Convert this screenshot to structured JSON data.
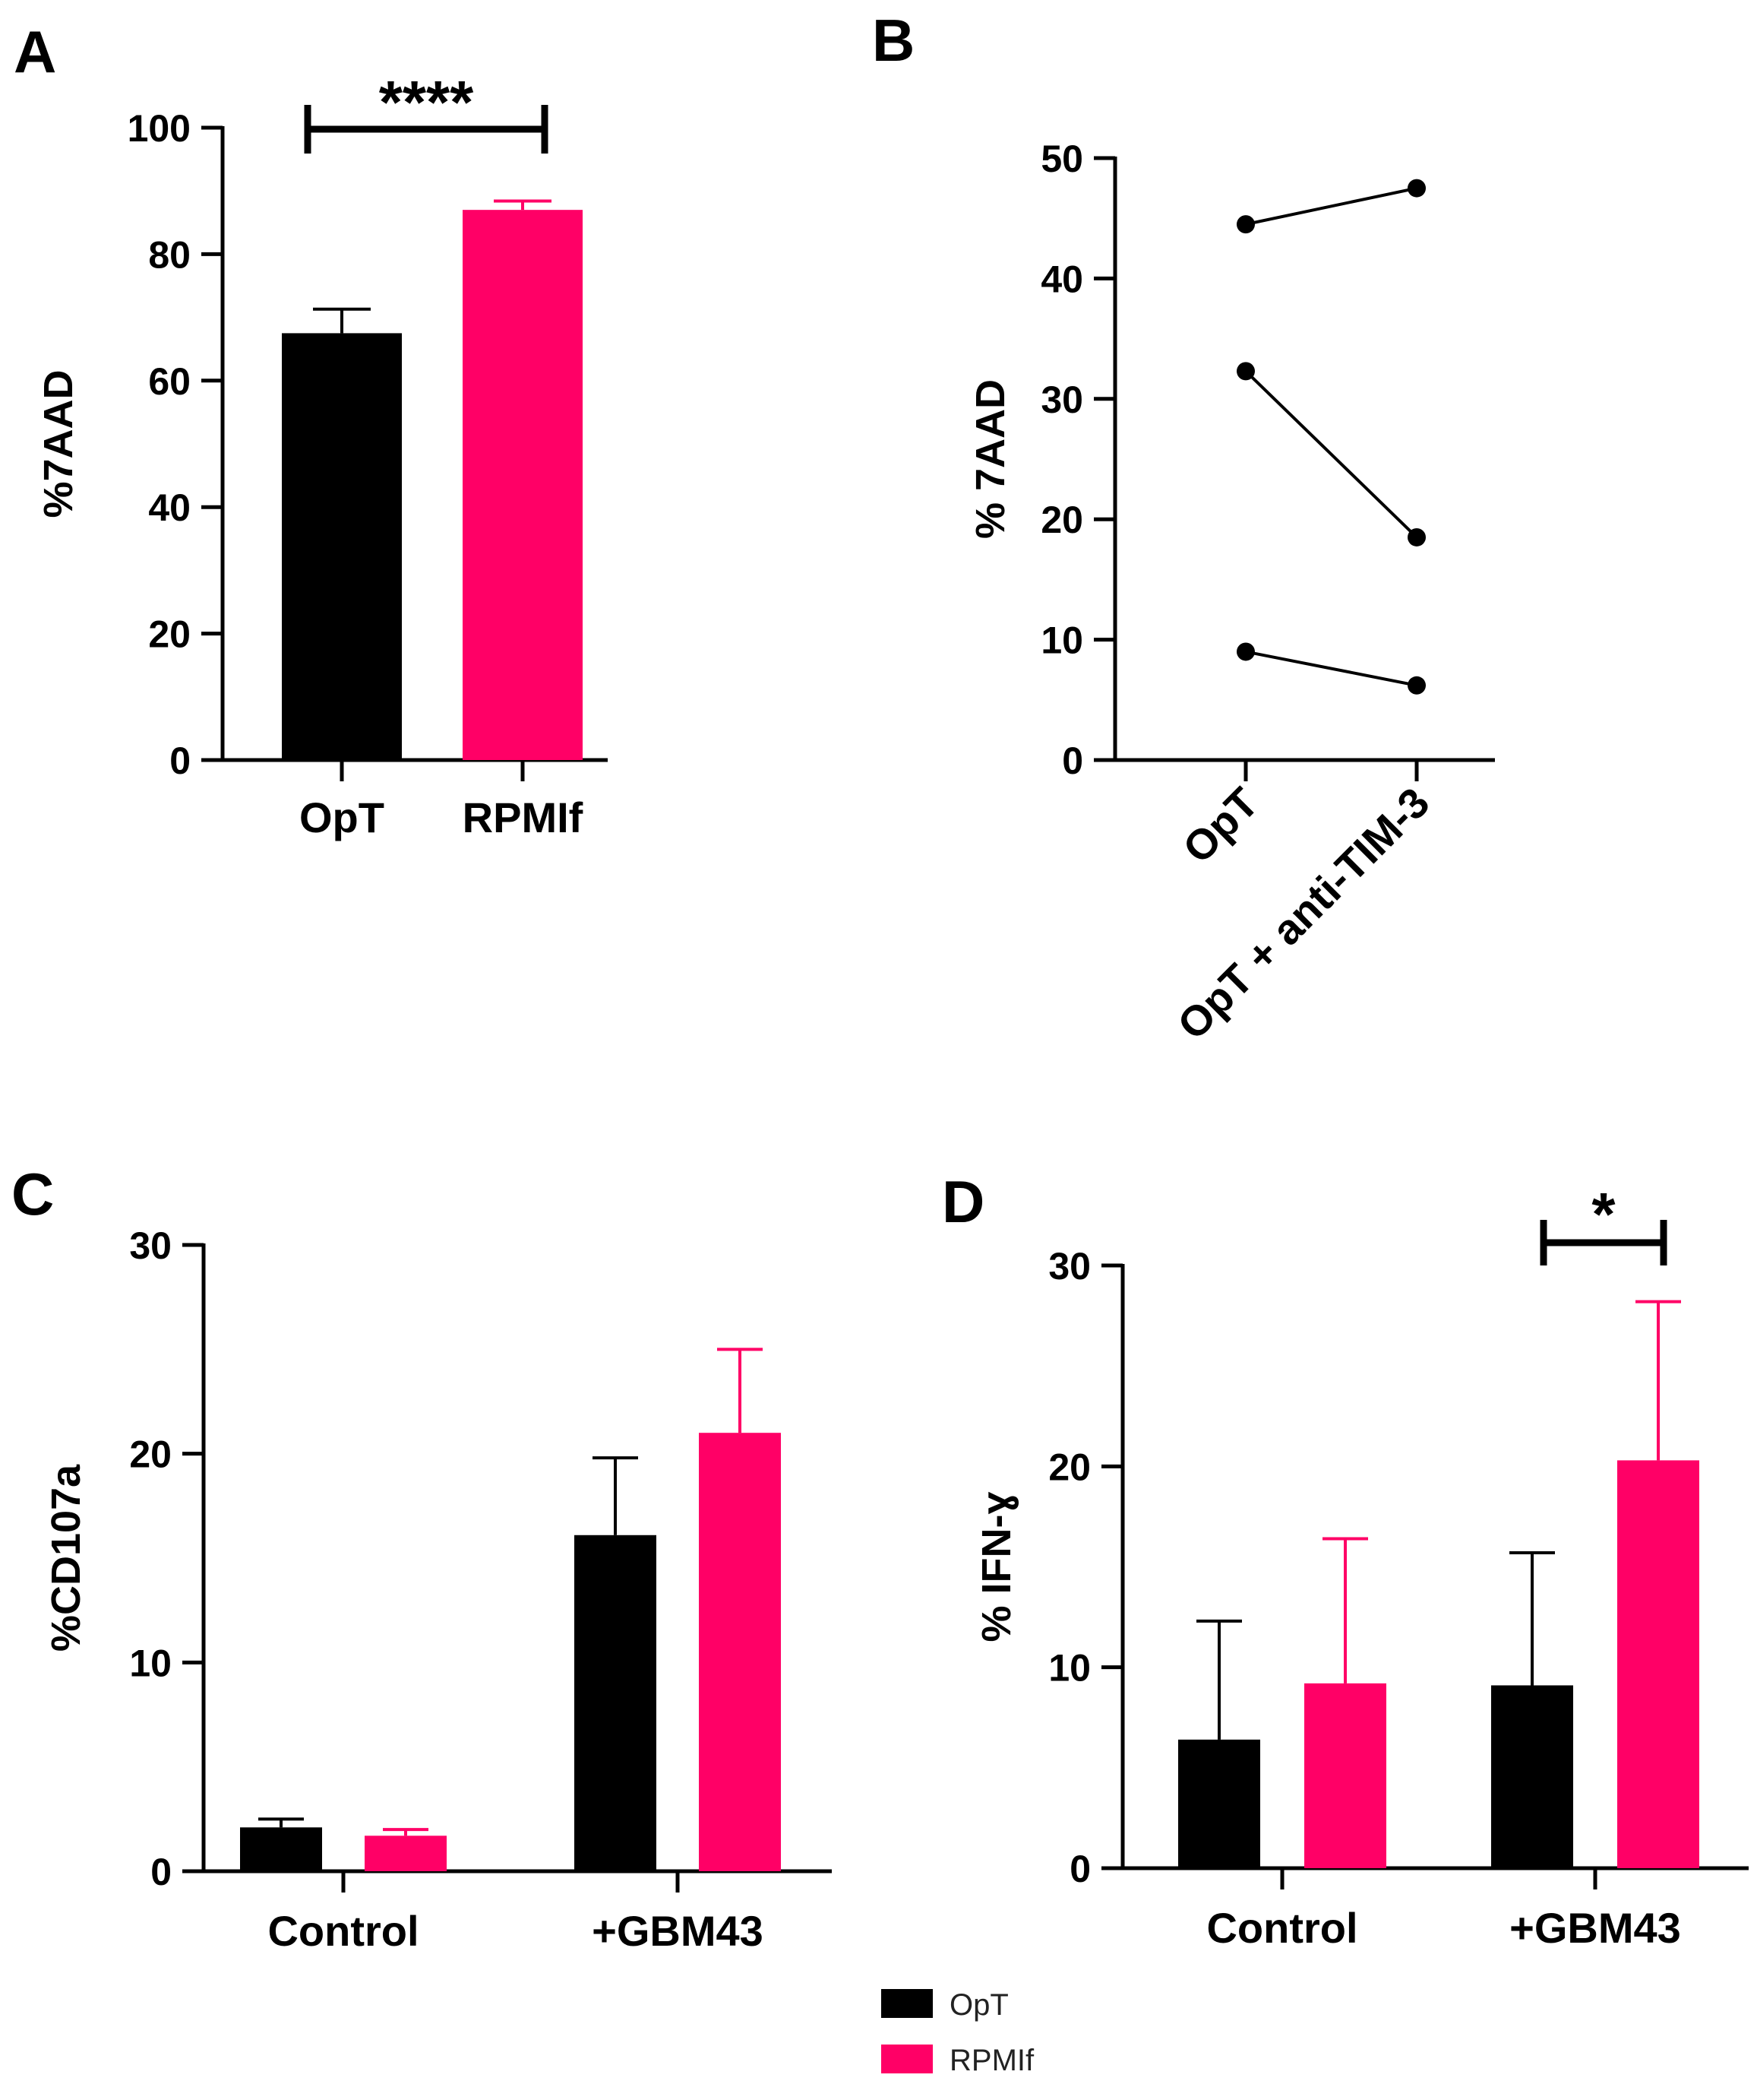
{
  "colors": {
    "opt": "#000000",
    "rpmif": "#ff0066",
    "axis": "#000000"
  },
  "legend": {
    "placement": "bottom-center",
    "items": [
      "OpT",
      "RPMIf"
    ]
  },
  "chart_data": [
    {
      "panel": "A",
      "type": "bar",
      "ylabel": "%7AAD",
      "ylim": [
        0,
        100
      ],
      "yticks": [
        0,
        20,
        40,
        60,
        80,
        100
      ],
      "categories": [
        "OpT",
        "RPMIf"
      ],
      "values": [
        67.5,
        87
      ],
      "errors": [
        3.8,
        1.4
      ],
      "significance": {
        "between": [
          "OpT",
          "RPMIf"
        ],
        "label": "****"
      }
    },
    {
      "panel": "B",
      "type": "line",
      "ylabel": "% 7AAD",
      "ylim": [
        0,
        50
      ],
      "yticks": [
        0,
        10,
        20,
        30,
        40,
        50
      ],
      "categories": [
        "OpT",
        "OpT + anti-TIM-3"
      ],
      "series": [
        {
          "values": [
            44.5,
            47.5
          ]
        },
        {
          "values": [
            32.3,
            18.5
          ]
        },
        {
          "values": [
            9.0,
            6.2
          ]
        }
      ]
    },
    {
      "panel": "C",
      "type": "bar",
      "ylabel": "%CD107a",
      "ylim": [
        0,
        30
      ],
      "yticks": [
        0,
        10,
        20,
        30
      ],
      "categories": [
        "Control",
        "+GBM43"
      ],
      "series": [
        {
          "name": "OpT",
          "values": [
            2.1,
            16.1
          ],
          "errors": [
            0.4,
            3.7
          ]
        },
        {
          "name": "RPMIf",
          "values": [
            1.7,
            21.0
          ],
          "errors": [
            0.3,
            4.0
          ]
        }
      ]
    },
    {
      "panel": "D",
      "type": "bar",
      "ylabel": "% IFN-ɣ",
      "ylim": [
        0,
        30
      ],
      "yticks": [
        0,
        10,
        20,
        30
      ],
      "categories": [
        "Control",
        "+GBM43"
      ],
      "series": [
        {
          "name": "OpT",
          "values": [
            6.4,
            9.1
          ],
          "errors": [
            5.9,
            6.6
          ]
        },
        {
          "name": "RPMIf",
          "values": [
            9.2,
            20.3
          ],
          "errors": [
            7.2,
            7.9
          ]
        }
      ],
      "significance": {
        "category": "+GBM43",
        "label": "*"
      }
    }
  ]
}
